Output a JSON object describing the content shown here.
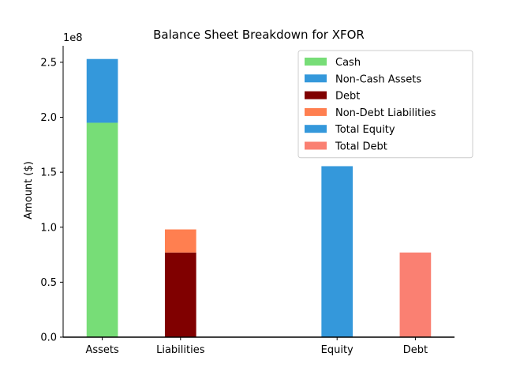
{
  "chart_data": {
    "type": "bar",
    "title": "Balance Sheet Breakdown for XFOR",
    "xlabel": "",
    "ylabel": "Amount ($)",
    "y_offset_label": "1e8",
    "ylim": [
      0,
      2.65
    ],
    "y_multiplier": 100000000,
    "yticks": [
      "0.0",
      "0.5",
      "1.0",
      "1.5",
      "2.0",
      "2.5"
    ],
    "categories": [
      "Assets",
      "Liabilities",
      "Equity",
      "Debt"
    ],
    "category_x": [
      0,
      1,
      3,
      4
    ],
    "xlim": [
      -0.5,
      4.5
    ],
    "series": [
      {
        "name": "Cash",
        "color": "#77dd77",
        "stack": "base",
        "values": [
          1.95,
          null,
          null,
          null
        ]
      },
      {
        "name": "Non-Cash Assets",
        "color": "#3498db",
        "stack": "top",
        "values": [
          0.58,
          null,
          null,
          null
        ]
      },
      {
        "name": "Debt",
        "color": "#800000",
        "stack": "base",
        "values": [
          null,
          0.77,
          null,
          null
        ]
      },
      {
        "name": "Non-Debt Liabilities",
        "color": "#ff7f50",
        "stack": "top",
        "values": [
          null,
          0.21,
          null,
          null
        ]
      },
      {
        "name": "Total Equity",
        "color": "#3498db",
        "stack": "base",
        "values": [
          null,
          null,
          1.555,
          null
        ]
      },
      {
        "name": "Total Debt",
        "color": "#fa8072",
        "stack": "base",
        "values": [
          null,
          null,
          null,
          0.77
        ]
      }
    ],
    "legend": {
      "placement": "top-right"
    },
    "grid": false
  }
}
